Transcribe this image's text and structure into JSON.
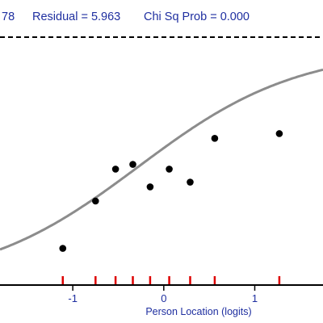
{
  "header": {
    "chisq_fragment": "78",
    "residual": "Residual = 5.963",
    "chisq_prob": "Chi Sq Prob = 0.000"
  },
  "colors": {
    "text": "#1f2fa0",
    "curve": "#8c8c8c",
    "points": "#000000",
    "person_ticks": "#dd0000",
    "axis": "#000000"
  },
  "chart_data": {
    "type": "scatter",
    "title": "",
    "xlabel": "Person Location (logits)",
    "ylabel": "",
    "xlim": [
      -1.8,
      1.75
    ],
    "ylim": [
      0,
      1
    ],
    "grid": false,
    "x_ticks": [
      {
        "value": -1,
        "label": "-1"
      },
      {
        "value": 0,
        "label": "0"
      },
      {
        "value": 1,
        "label": "1"
      }
    ],
    "expected_curve": {
      "name": "",
      "location": -0.28,
      "slope": 1.14
    },
    "observed_points": [
      {
        "x": -1.11,
        "y": 0.155
      },
      {
        "x": -0.75,
        "y": 0.355
      },
      {
        "x": -0.53,
        "y": 0.49
      },
      {
        "x": -0.34,
        "y": 0.51
      },
      {
        "x": -0.15,
        "y": 0.415
      },
      {
        "x": 0.06,
        "y": 0.49
      },
      {
        "x": 0.29,
        "y": 0.435
      },
      {
        "x": 0.56,
        "y": 0.62
      },
      {
        "x": 1.27,
        "y": 0.64
      }
    ],
    "class_interval_ticks": [
      -1.11,
      -0.75,
      -0.53,
      -0.34,
      -0.15,
      0.06,
      0.29,
      0.56,
      1.27
    ]
  }
}
